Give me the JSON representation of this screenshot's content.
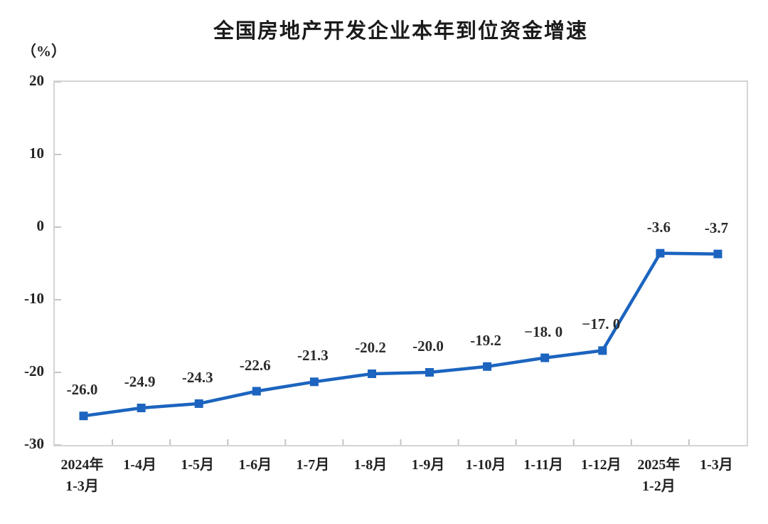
{
  "chart_data": {
    "type": "line",
    "title": "全国房地产开发企业本年到位资金增速",
    "unit_label": "（%）",
    "categories": [
      [
        "2024年",
        "1-3月"
      ],
      [
        "1-4月"
      ],
      [
        "1-5月"
      ],
      [
        "1-6月"
      ],
      [
        "1-7月"
      ],
      [
        "1-8月"
      ],
      [
        "1-9月"
      ],
      [
        "1-10月"
      ],
      [
        "1-11月"
      ],
      [
        "1-12月"
      ],
      [
        "2025年",
        "1-2月"
      ],
      [
        "1-3月"
      ]
    ],
    "values": [
      -26.0,
      -24.9,
      -24.3,
      -22.6,
      -21.3,
      -20.2,
      -20.0,
      -19.2,
      -18.0,
      -17.0,
      -3.6,
      -3.7
    ],
    "point_labels": [
      "-26.0",
      "-24.9",
      "-24.3",
      "-22.6",
      "-21.3",
      "-20.2",
      "-20.0",
      "-19.2",
      "−18. 0",
      "−17. 0",
      "-3.6",
      "-3.7"
    ],
    "y_ticks": [
      20,
      10,
      0,
      -10,
      -20,
      -30
    ],
    "ylim": [
      -30,
      20
    ],
    "grid": false,
    "legend": "none",
    "marker": "square",
    "colors": {
      "line": "#1c64bf",
      "marker": "#1c64bf",
      "axis_border": "#d4d4d4",
      "tick": "#c4c4c4",
      "text": "#222222"
    }
  }
}
